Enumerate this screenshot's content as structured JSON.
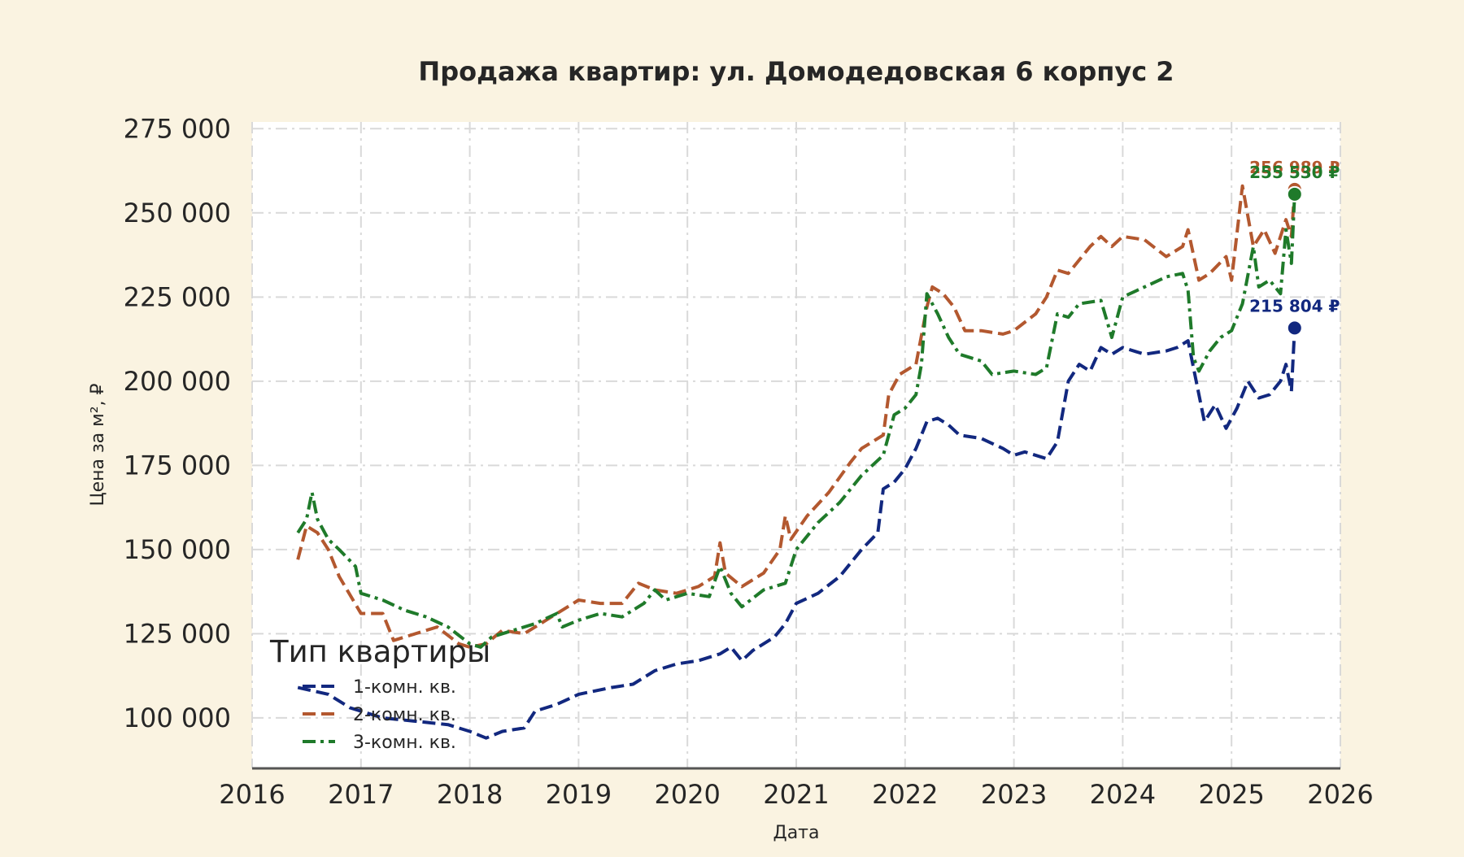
{
  "colors": {
    "background": "#faf3e1",
    "plot_background": "#ffffff",
    "series": [
      "#12287f",
      "#b3582f",
      "#1f7a2a"
    ]
  },
  "chart_data": {
    "type": "line",
    "title": "Продажа квартир: ул. Домодедовская 6 корпус 2",
    "xlabel": "Дата",
    "ylabel": "Цена за м², ₽",
    "xlim": [
      2016,
      2026
    ],
    "ylim": [
      85000,
      277000
    ],
    "x_ticks": [
      "2016",
      "2017",
      "2018",
      "2019",
      "2020",
      "2021",
      "2022",
      "2023",
      "2024",
      "2025",
      "2026"
    ],
    "y_ticks": [
      "100 000",
      "125 000",
      "150 000",
      "175 000",
      "200 000",
      "225 000",
      "250 000",
      "275 000"
    ],
    "grid": true,
    "legend": {
      "title": "Тип квартиры",
      "position": "lower-left"
    },
    "series": [
      {
        "name": "1-комн. кв.",
        "color": "#12287f",
        "dash": "dashed",
        "end_label": "215 804 ₽",
        "end_value": 215804,
        "points": [
          [
            2016.42,
            109000
          ],
          [
            2016.7,
            107000
          ],
          [
            2016.9,
            103000
          ],
          [
            2017.2,
            100000
          ],
          [
            2017.5,
            99000
          ],
          [
            2017.8,
            98000
          ],
          [
            2018.0,
            96000
          ],
          [
            2018.15,
            94000
          ],
          [
            2018.3,
            96000
          ],
          [
            2018.5,
            97000
          ],
          [
            2018.6,
            102000
          ],
          [
            2018.8,
            104000
          ],
          [
            2019.0,
            107000
          ],
          [
            2019.3,
            109000
          ],
          [
            2019.5,
            110000
          ],
          [
            2019.7,
            114000
          ],
          [
            2019.9,
            116000
          ],
          [
            2020.1,
            117000
          ],
          [
            2020.3,
            119000
          ],
          [
            2020.4,
            121000
          ],
          [
            2020.5,
            117000
          ],
          [
            2020.6,
            120000
          ],
          [
            2020.8,
            124000
          ],
          [
            2020.9,
            128000
          ],
          [
            2021.0,
            134000
          ],
          [
            2021.2,
            137000
          ],
          [
            2021.4,
            142000
          ],
          [
            2021.6,
            150000
          ],
          [
            2021.75,
            155000
          ],
          [
            2021.8,
            168000
          ],
          [
            2021.9,
            170000
          ],
          [
            2022.0,
            174000
          ],
          [
            2022.1,
            180000
          ],
          [
            2022.2,
            188000
          ],
          [
            2022.3,
            189000
          ],
          [
            2022.4,
            187000
          ],
          [
            2022.5,
            184000
          ],
          [
            2022.7,
            183000
          ],
          [
            2022.9,
            180000
          ],
          [
            2023.0,
            178000
          ],
          [
            2023.1,
            179000
          ],
          [
            2023.3,
            177000
          ],
          [
            2023.4,
            182000
          ],
          [
            2023.5,
            200000
          ],
          [
            2023.6,
            205000
          ],
          [
            2023.7,
            203000
          ],
          [
            2023.8,
            210000
          ],
          [
            2023.9,
            208000
          ],
          [
            2024.0,
            210000
          ],
          [
            2024.2,
            208000
          ],
          [
            2024.4,
            209000
          ],
          [
            2024.5,
            210000
          ],
          [
            2024.6,
            212000
          ],
          [
            2024.7,
            196000
          ],
          [
            2024.75,
            188000
          ],
          [
            2024.85,
            193000
          ],
          [
            2024.95,
            186000
          ],
          [
            2025.05,
            192000
          ],
          [
            2025.15,
            200000
          ],
          [
            2025.25,
            195000
          ],
          [
            2025.35,
            196000
          ],
          [
            2025.45,
            200000
          ],
          [
            2025.5,
            205000
          ],
          [
            2025.55,
            197000
          ],
          [
            2025.58,
            215804
          ]
        ]
      },
      {
        "name": "2-комн. кв.",
        "color": "#b3582f",
        "dash": "dashed",
        "end_label": "256 989 ₽",
        "end_value": 256989,
        "points": [
          [
            2016.42,
            147000
          ],
          [
            2016.5,
            157000
          ],
          [
            2016.6,
            155000
          ],
          [
            2016.7,
            150000
          ],
          [
            2016.8,
            142000
          ],
          [
            2017.0,
            131000
          ],
          [
            2017.2,
            131000
          ],
          [
            2017.3,
            123000
          ],
          [
            2017.5,
            125000
          ],
          [
            2017.7,
            127000
          ],
          [
            2017.9,
            122000
          ],
          [
            2018.0,
            121000
          ],
          [
            2018.15,
            122000
          ],
          [
            2018.3,
            126000
          ],
          [
            2018.5,
            125000
          ],
          [
            2018.7,
            129000
          ],
          [
            2018.9,
            133000
          ],
          [
            2019.0,
            135000
          ],
          [
            2019.2,
            134000
          ],
          [
            2019.4,
            134000
          ],
          [
            2019.55,
            140000
          ],
          [
            2019.7,
            138000
          ],
          [
            2019.9,
            137000
          ],
          [
            2020.1,
            139000
          ],
          [
            2020.25,
            142000
          ],
          [
            2020.3,
            152000
          ],
          [
            2020.35,
            143000
          ],
          [
            2020.5,
            139000
          ],
          [
            2020.7,
            143000
          ],
          [
            2020.85,
            150000
          ],
          [
            2020.9,
            160000
          ],
          [
            2020.95,
            153000
          ],
          [
            2021.1,
            160000
          ],
          [
            2021.3,
            167000
          ],
          [
            2021.5,
            176000
          ],
          [
            2021.6,
            180000
          ],
          [
            2021.8,
            184000
          ],
          [
            2021.85,
            196000
          ],
          [
            2021.95,
            202000
          ],
          [
            2022.1,
            205000
          ],
          [
            2022.2,
            222000
          ],
          [
            2022.25,
            228000
          ],
          [
            2022.35,
            226000
          ],
          [
            2022.45,
            222000
          ],
          [
            2022.55,
            215000
          ],
          [
            2022.7,
            215000
          ],
          [
            2022.9,
            214000
          ],
          [
            2023.0,
            215000
          ],
          [
            2023.2,
            220000
          ],
          [
            2023.3,
            225000
          ],
          [
            2023.4,
            233000
          ],
          [
            2023.5,
            232000
          ],
          [
            2023.6,
            236000
          ],
          [
            2023.7,
            240000
          ],
          [
            2023.8,
            243000
          ],
          [
            2023.9,
            240000
          ],
          [
            2024.0,
            243000
          ],
          [
            2024.2,
            242000
          ],
          [
            2024.4,
            237000
          ],
          [
            2024.55,
            240000
          ],
          [
            2024.6,
            245000
          ],
          [
            2024.7,
            230000
          ],
          [
            2024.8,
            232000
          ],
          [
            2024.95,
            237000
          ],
          [
            2025.0,
            230000
          ],
          [
            2025.1,
            258000
          ],
          [
            2025.2,
            240000
          ],
          [
            2025.3,
            245000
          ],
          [
            2025.4,
            238000
          ],
          [
            2025.5,
            248000
          ],
          [
            2025.55,
            243000
          ],
          [
            2025.58,
            256989
          ]
        ]
      },
      {
        "name": "3-комн. кв.",
        "color": "#1f7a2a",
        "dash": "dashdot",
        "end_label": "255 530 ₽",
        "end_value": 255530,
        "points": [
          [
            2016.42,
            155000
          ],
          [
            2016.5,
            159000
          ],
          [
            2016.55,
            167000
          ],
          [
            2016.6,
            159000
          ],
          [
            2016.7,
            153000
          ],
          [
            2016.8,
            150000
          ],
          [
            2016.95,
            145000
          ],
          [
            2017.0,
            137000
          ],
          [
            2017.2,
            135000
          ],
          [
            2017.4,
            132000
          ],
          [
            2017.6,
            130000
          ],
          [
            2017.8,
            127000
          ],
          [
            2018.0,
            122000
          ],
          [
            2018.1,
            121000
          ],
          [
            2018.2,
            124000
          ],
          [
            2018.4,
            126000
          ],
          [
            2018.6,
            128000
          ],
          [
            2018.8,
            131000
          ],
          [
            2018.85,
            127000
          ],
          [
            2019.0,
            129000
          ],
          [
            2019.2,
            131000
          ],
          [
            2019.4,
            130000
          ],
          [
            2019.6,
            134000
          ],
          [
            2019.7,
            138000
          ],
          [
            2019.8,
            135000
          ],
          [
            2020.0,
            137000
          ],
          [
            2020.2,
            136000
          ],
          [
            2020.3,
            145000
          ],
          [
            2020.4,
            137000
          ],
          [
            2020.5,
            133000
          ],
          [
            2020.7,
            138000
          ],
          [
            2020.9,
            140000
          ],
          [
            2021.0,
            150000
          ],
          [
            2021.2,
            158000
          ],
          [
            2021.4,
            164000
          ],
          [
            2021.6,
            172000
          ],
          [
            2021.8,
            178000
          ],
          [
            2021.9,
            190000
          ],
          [
            2022.0,
            192000
          ],
          [
            2022.1,
            196000
          ],
          [
            2022.15,
            205000
          ],
          [
            2022.2,
            226000
          ],
          [
            2022.3,
            220000
          ],
          [
            2022.4,
            213000
          ],
          [
            2022.5,
            208000
          ],
          [
            2022.7,
            206000
          ],
          [
            2022.8,
            202000
          ],
          [
            2023.0,
            203000
          ],
          [
            2023.2,
            202000
          ],
          [
            2023.3,
            204000
          ],
          [
            2023.4,
            220000
          ],
          [
            2023.5,
            219000
          ],
          [
            2023.6,
            223000
          ],
          [
            2023.8,
            224000
          ],
          [
            2023.9,
            213000
          ],
          [
            2024.0,
            225000
          ],
          [
            2024.2,
            228000
          ],
          [
            2024.4,
            231000
          ],
          [
            2024.55,
            232000
          ],
          [
            2024.6,
            227000
          ],
          [
            2024.65,
            207000
          ],
          [
            2024.7,
            203000
          ],
          [
            2024.8,
            209000
          ],
          [
            2024.9,
            213000
          ],
          [
            2025.0,
            215000
          ],
          [
            2025.1,
            223000
          ],
          [
            2025.2,
            240000
          ],
          [
            2025.25,
            228000
          ],
          [
            2025.35,
            230000
          ],
          [
            2025.45,
            226000
          ],
          [
            2025.5,
            245000
          ],
          [
            2025.55,
            235000
          ],
          [
            2025.58,
            255530
          ]
        ]
      }
    ]
  }
}
